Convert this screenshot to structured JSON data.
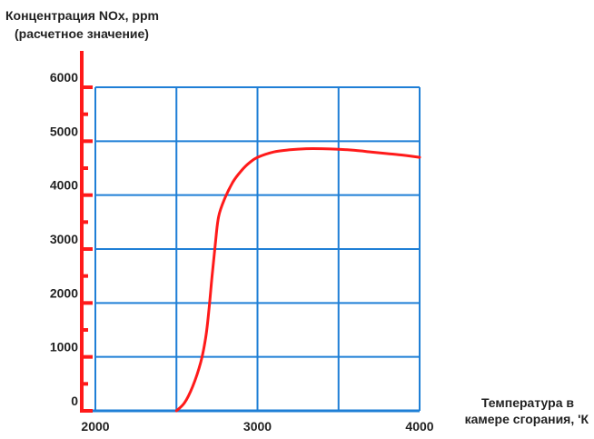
{
  "chart_data": {
    "type": "line",
    "title_lines": [
      "Концентрация NOx, ppm",
      "(расчетное значение)"
    ],
    "xlabel_lines": [
      "Температура в",
      "камере сгорания, 'К"
    ],
    "xlim": [
      2000,
      4000
    ],
    "ylim": [
      0,
      6000
    ],
    "x_ticks": [
      2000,
      3000,
      4000
    ],
    "x_tick_labels": [
      "2000",
      "3000",
      "4000"
    ],
    "y_ticks": [
      0,
      1000,
      2000,
      3000,
      4000,
      5000,
      6000
    ],
    "y_tick_labels": [
      "0",
      "1000",
      "2000",
      "3000",
      "4000",
      "5000",
      "6000"
    ],
    "grid": true,
    "x_grid_step": 500,
    "y_grid_step": 1000,
    "colors": {
      "curve": "#ff1a1a",
      "grid": "#1f7fd6",
      "y_axis": "#ff1a1a",
      "x_axis": "#1f7fd6"
    },
    "series": [
      {
        "x": [
          2500,
          2550,
          2600,
          2650,
          2680,
          2700,
          2720,
          2740,
          2760,
          2800,
          2850,
          2900,
          2950,
          3000,
          3100,
          3200,
          3300,
          3400,
          3500,
          3600,
          3700,
          3800,
          3900,
          4000
        ],
        "y": [
          0,
          150,
          450,
          900,
          1350,
          1850,
          2500,
          3100,
          3600,
          3950,
          4250,
          4450,
          4600,
          4700,
          4800,
          4840,
          4860,
          4860,
          4850,
          4830,
          4800,
          4770,
          4740,
          4700
        ]
      }
    ]
  }
}
